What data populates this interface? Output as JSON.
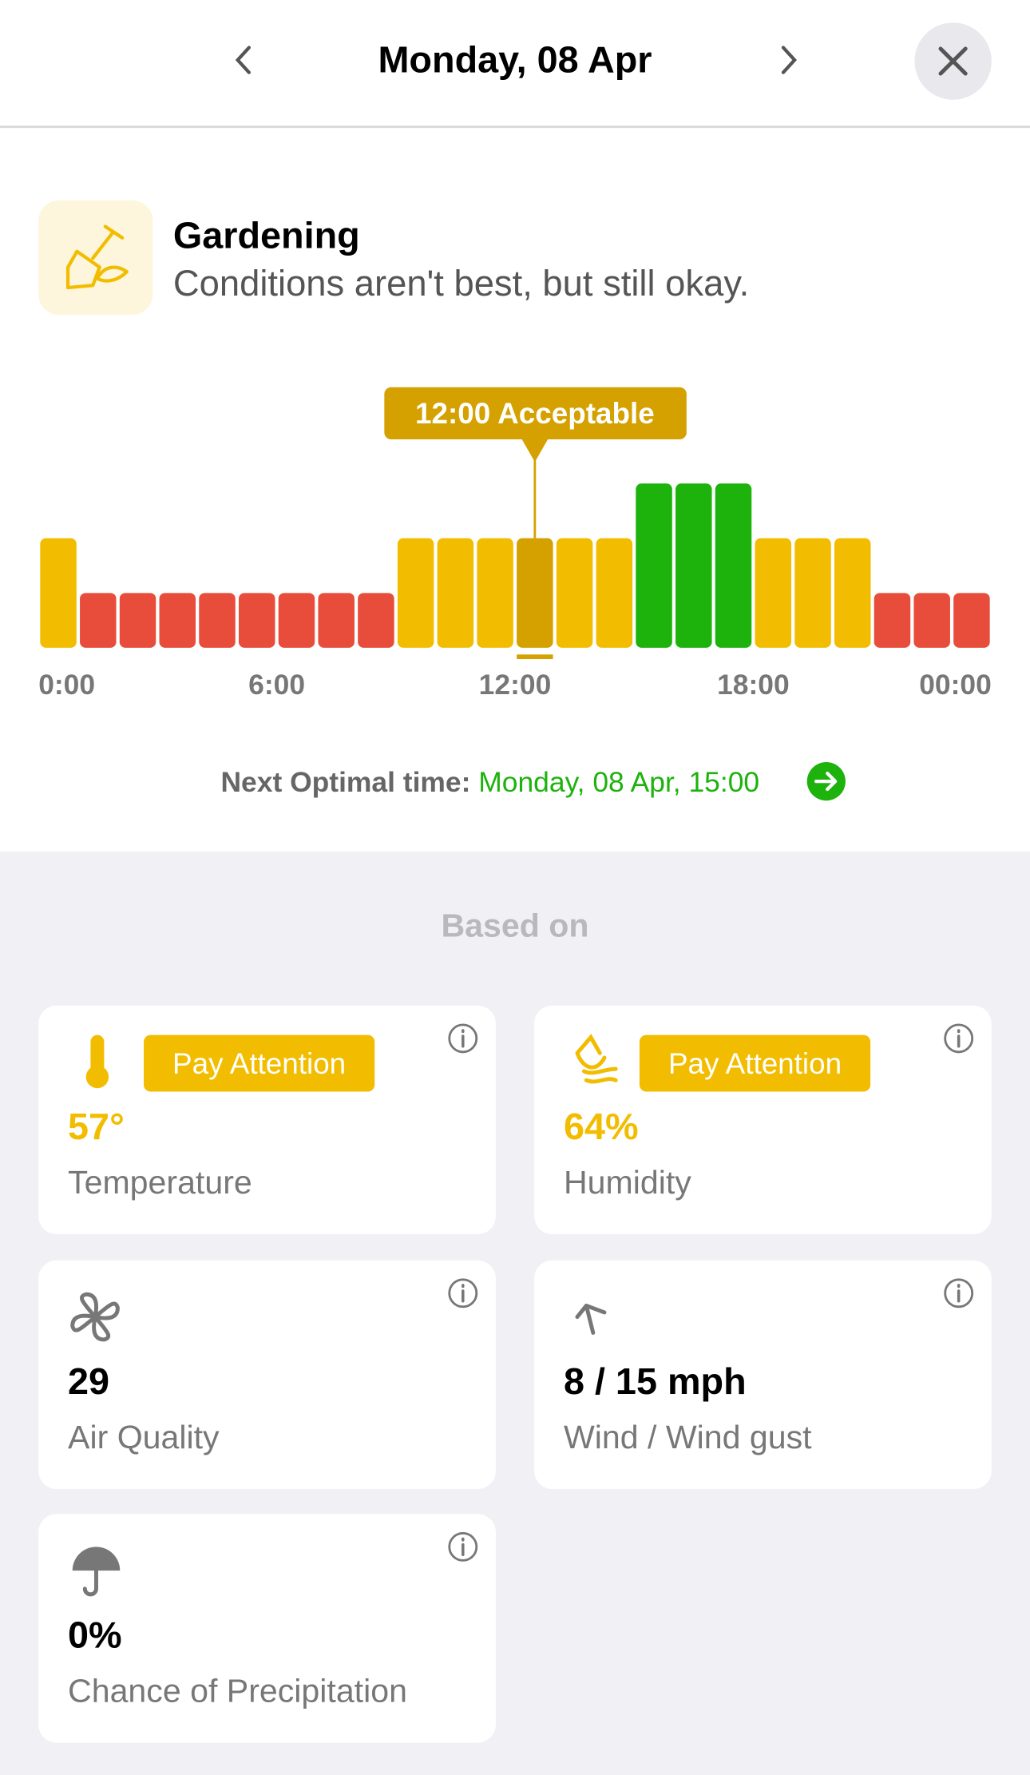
{
  "header": {
    "title": "Monday, 08 Apr"
  },
  "activity": {
    "name": "Gardening",
    "summary": "Conditions aren't best, but still okay."
  },
  "chart_data": {
    "type": "bar",
    "x": [
      0,
      1,
      2,
      3,
      4,
      5,
      6,
      7,
      8,
      9,
      10,
      11,
      12,
      13,
      14,
      15,
      16,
      17,
      18,
      19,
      20,
      21,
      22,
      23
    ],
    "values": [
      2,
      1,
      1,
      1,
      1,
      1,
      1,
      1,
      1,
      2,
      2,
      2,
      2,
      2,
      2,
      3,
      3,
      3,
      2,
      2,
      2,
      1,
      1,
      1
    ],
    "colors": [
      "#f2bd00",
      "#e84c3a",
      "#e84c3a",
      "#e84c3a",
      "#e84c3a",
      "#e84c3a",
      "#e84c3a",
      "#e84c3a",
      "#e84c3a",
      "#f2bd00",
      "#f2bd00",
      "#f2bd00",
      "#f2bd00",
      "#f2bd00",
      "#f2bd00",
      "#1db20c",
      "#1db20c",
      "#1db20c",
      "#f2bd00",
      "#f2bd00",
      "#f2bd00",
      "#e84c3a",
      "#e84c3a",
      "#e84c3a"
    ],
    "xlim": [
      0,
      24
    ],
    "ylim": [
      0,
      3
    ],
    "xticks": [
      {
        "value": 0,
        "label": "0:00"
      },
      {
        "value": 6,
        "label": "6:00"
      },
      {
        "value": 12,
        "label": "12:00"
      },
      {
        "value": 18,
        "label": "18:00"
      },
      {
        "value": 24,
        "label": "00:00"
      }
    ],
    "highlight": {
      "index": 12,
      "label": "12:00 Acceptable",
      "color": "#d4a100"
    }
  },
  "next_optimal": {
    "label": "Next Optimal time:",
    "value": "Monday, 08 Apr, 15:00"
  },
  "based_on": "Based on",
  "factors": [
    {
      "status": "Pay Attention",
      "value": "57°",
      "label": "Temperature"
    },
    {
      "status": "Pay Attention",
      "value": "64%",
      "label": "Humidity"
    },
    {
      "value": "29",
      "label": "Air Quality"
    },
    {
      "value": "8 / 15 mph",
      "label": "Wind / Wind gust"
    },
    {
      "value": "0%",
      "label": "Chance of Precipitation"
    }
  ]
}
